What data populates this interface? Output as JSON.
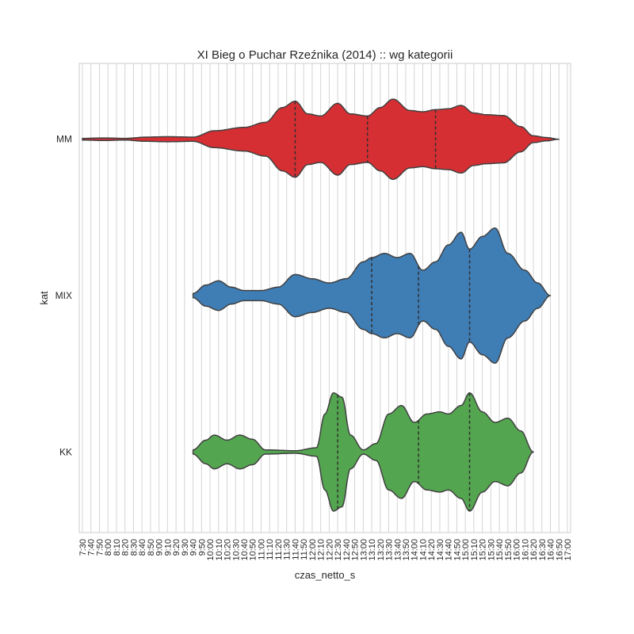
{
  "chart_data": {
    "type": "violin",
    "title": "XI Bieg o Puchar Rzeźnika (2014) :: wg kategorii",
    "xlabel": "czas_netto_s",
    "ylabel": "kat",
    "grid": true,
    "xlim": [
      "7:30",
      "17:00"
    ],
    "x_ticks": [
      "7:30",
      "7:40",
      "7:50",
      "8:00",
      "8:10",
      "8:20",
      "8:30",
      "8:40",
      "8:50",
      "9:00",
      "9:10",
      "9:20",
      "9:30",
      "9:40",
      "9:50",
      "10:00",
      "10:10",
      "10:20",
      "10:30",
      "10:40",
      "10:50",
      "11:00",
      "11:10",
      "11:20",
      "11:30",
      "11:40",
      "11:50",
      "12:00",
      "12:10",
      "12:20",
      "12:30",
      "12:40",
      "12:50",
      "13:00",
      "13:10",
      "13:20",
      "13:30",
      "13:40",
      "13:50",
      "14:00",
      "14:10",
      "14:20",
      "14:30",
      "14:40",
      "14:50",
      "15:00",
      "15:10",
      "15:20",
      "15:30",
      "15:40",
      "15:50",
      "16:00",
      "16:10",
      "16:20",
      "16:30",
      "16:40",
      "16:50",
      "17:00"
    ],
    "categories": [
      "MM",
      "MIX",
      "KK"
    ],
    "series": [
      {
        "name": "MM",
        "color": "#d62f33",
        "range": [
          "7:30",
          "16:50"
        ],
        "quartiles": [
          "11:40",
          "13:05",
          "14:25"
        ],
        "density": [
          [
            "7:30",
            0.02
          ],
          [
            "7:55",
            0.03
          ],
          [
            "8:20",
            0.02
          ],
          [
            "8:45",
            0.05
          ],
          [
            "9:10",
            0.06
          ],
          [
            "9:40",
            0.05
          ],
          [
            "10:05",
            0.2
          ],
          [
            "10:40",
            0.28
          ],
          [
            "11:05",
            0.4
          ],
          [
            "11:25",
            0.75
          ],
          [
            "11:40",
            0.9
          ],
          [
            "11:55",
            0.6
          ],
          [
            "12:10",
            0.55
          ],
          [
            "12:30",
            0.85
          ],
          [
            "12:45",
            0.6
          ],
          [
            "13:05",
            0.55
          ],
          [
            "13:20",
            0.75
          ],
          [
            "13:35",
            0.95
          ],
          [
            "13:55",
            0.68
          ],
          [
            "14:10",
            0.65
          ],
          [
            "14:25",
            0.7
          ],
          [
            "14:40",
            0.72
          ],
          [
            "14:55",
            0.8
          ],
          [
            "15:10",
            0.62
          ],
          [
            "15:25",
            0.58
          ],
          [
            "15:45",
            0.56
          ],
          [
            "16:05",
            0.3
          ],
          [
            "16:20",
            0.08
          ],
          [
            "16:35",
            0.04
          ],
          [
            "16:50",
            0.0
          ]
        ]
      },
      {
        "name": "MIX",
        "color": "#3f7db5",
        "range": [
          "9:40",
          "16:40"
        ],
        "quartiles": [
          "13:10",
          "14:05",
          "15:05"
        ],
        "density": [
          [
            "9:40",
            0.05
          ],
          [
            "9:55",
            0.25
          ],
          [
            "10:10",
            0.35
          ],
          [
            "10:25",
            0.2
          ],
          [
            "10:40",
            0.12
          ],
          [
            "11:00",
            0.12
          ],
          [
            "11:20",
            0.2
          ],
          [
            "11:40",
            0.5
          ],
          [
            "12:00",
            0.4
          ],
          [
            "12:20",
            0.3
          ],
          [
            "12:40",
            0.4
          ],
          [
            "13:00",
            0.8
          ],
          [
            "13:10",
            0.9
          ],
          [
            "13:25",
            1.0
          ],
          [
            "13:40",
            0.9
          ],
          [
            "13:55",
            1.0
          ],
          [
            "14:10",
            0.6
          ],
          [
            "14:25",
            0.8
          ],
          [
            "14:40",
            1.2
          ],
          [
            "14:55",
            1.5
          ],
          [
            "15:05",
            1.1
          ],
          [
            "15:20",
            1.4
          ],
          [
            "15:35",
            1.6
          ],
          [
            "15:50",
            1.0
          ],
          [
            "16:10",
            0.6
          ],
          [
            "16:25",
            0.3
          ],
          [
            "16:40",
            0.0
          ]
        ]
      },
      {
        "name": "KK",
        "color": "#54a550",
        "range": [
          "9:40",
          "16:20"
        ],
        "quartiles": [
          "12:30",
          "14:05",
          "15:05"
        ],
        "density": [
          [
            "9:40",
            0.05
          ],
          [
            "9:55",
            0.28
          ],
          [
            "10:05",
            0.4
          ],
          [
            "10:20",
            0.28
          ],
          [
            "10:35",
            0.4
          ],
          [
            "10:50",
            0.3
          ],
          [
            "11:05",
            0.05
          ],
          [
            "11:40",
            0.03
          ],
          [
            "12:05",
            0.1
          ],
          [
            "12:15",
            0.9
          ],
          [
            "12:25",
            1.4
          ],
          [
            "12:35",
            1.3
          ],
          [
            "12:45",
            0.4
          ],
          [
            "13:00",
            0.05
          ],
          [
            "13:15",
            0.2
          ],
          [
            "13:30",
            0.9
          ],
          [
            "13:45",
            1.1
          ],
          [
            "14:00",
            0.7
          ],
          [
            "14:15",
            0.9
          ],
          [
            "14:30",
            0.95
          ],
          [
            "14:40",
            0.9
          ],
          [
            "14:55",
            1.1
          ],
          [
            "15:05",
            1.4
          ],
          [
            "15:20",
            0.95
          ],
          [
            "15:35",
            0.7
          ],
          [
            "15:50",
            0.8
          ],
          [
            "16:05",
            0.5
          ],
          [
            "16:20",
            0.0
          ]
        ]
      }
    ]
  }
}
